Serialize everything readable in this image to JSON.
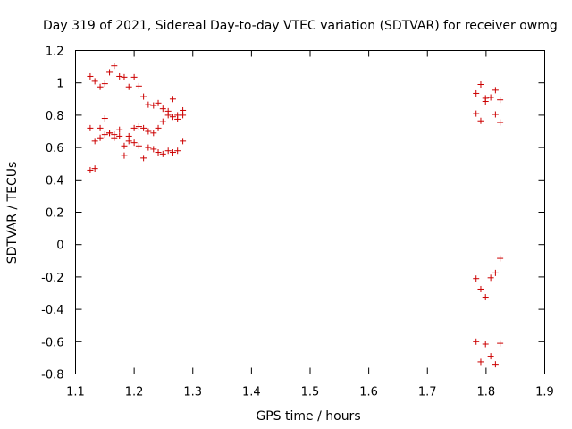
{
  "chart_data": {
    "type": "scatter",
    "title": "Day 319 of 2021, Sidereal Day-to-day VTEC variation (SDTVAR) for receiver owmg",
    "xlabel": "GPS time / hours",
    "ylabel": "SDTVAR / TECUs",
    "xlim": [
      1.1,
      1.9
    ],
    "ylim": [
      -0.8,
      1.2
    ],
    "x_ticks": [
      1.1,
      1.2,
      1.3,
      1.4,
      1.5,
      1.6,
      1.7,
      1.8,
      1.9
    ],
    "x_tick_labels": [
      "1.1",
      "1.2",
      "1.3",
      "1.4",
      "1.5",
      "1.6",
      "1.7",
      "1.8",
      "1.9"
    ],
    "y_ticks": [
      -0.8,
      -0.6,
      -0.4,
      -0.2,
      0,
      0.2,
      0.4,
      0.6,
      0.8,
      1,
      1.2
    ],
    "y_tick_labels": [
      "-0.8",
      "-0.6",
      "-0.4",
      "-0.2",
      "0",
      "0.2",
      "0.4",
      "0.6",
      "0.8",
      "1",
      "1.2"
    ],
    "grid": false,
    "marker": "+",
    "marker_color": "#cc0000",
    "series": [
      {
        "name": "SDTVAR",
        "points": [
          [
            1.125,
            1.04
          ],
          [
            1.133,
            1.01
          ],
          [
            1.142,
            0.975
          ],
          [
            1.15,
            0.995
          ],
          [
            1.158,
            1.065
          ],
          [
            1.166,
            1.105
          ],
          [
            1.175,
            1.04
          ],
          [
            1.183,
            1.035
          ],
          [
            1.191,
            0.975
          ],
          [
            1.2,
            1.035
          ],
          [
            1.208,
            0.98
          ],
          [
            1.216,
            0.915
          ],
          [
            1.224,
            0.865
          ],
          [
            1.233,
            0.86
          ],
          [
            1.241,
            0.875
          ],
          [
            1.249,
            0.84
          ],
          [
            1.258,
            0.825
          ],
          [
            1.266,
            0.9
          ],
          [
            1.274,
            0.775
          ],
          [
            1.283,
            0.83
          ],
          [
            1.125,
            0.72
          ],
          [
            1.133,
            0.64
          ],
          [
            1.142,
            0.72
          ],
          [
            1.15,
            0.78
          ],
          [
            1.158,
            0.69
          ],
          [
            1.166,
            0.68
          ],
          [
            1.175,
            0.71
          ],
          [
            1.183,
            0.55
          ],
          [
            1.191,
            0.64
          ],
          [
            1.2,
            0.72
          ],
          [
            1.208,
            0.73
          ],
          [
            1.216,
            0.72
          ],
          [
            1.224,
            0.7
          ],
          [
            1.233,
            0.69
          ],
          [
            1.241,
            0.72
          ],
          [
            1.249,
            0.76
          ],
          [
            1.258,
            0.8
          ],
          [
            1.266,
            0.79
          ],
          [
            1.274,
            0.8
          ],
          [
            1.283,
            0.8
          ],
          [
            1.125,
            0.46
          ],
          [
            1.133,
            0.47
          ],
          [
            1.142,
            0.66
          ],
          [
            1.15,
            0.68
          ],
          [
            1.158,
            0.69
          ],
          [
            1.166,
            0.66
          ],
          [
            1.175,
            0.67
          ],
          [
            1.183,
            0.61
          ],
          [
            1.191,
            0.67
          ],
          [
            1.2,
            0.63
          ],
          [
            1.208,
            0.61
          ],
          [
            1.216,
            0.535
          ],
          [
            1.224,
            0.6
          ],
          [
            1.233,
            0.59
          ],
          [
            1.241,
            0.57
          ],
          [
            1.249,
            0.56
          ],
          [
            1.258,
            0.58
          ],
          [
            1.266,
            0.57
          ],
          [
            1.274,
            0.58
          ],
          [
            1.283,
            0.64
          ],
          [
            1.783,
            0.935
          ],
          [
            1.791,
            0.99
          ],
          [
            1.799,
            0.905
          ],
          [
            1.808,
            0.91
          ],
          [
            1.816,
            0.955
          ],
          [
            1.824,
            0.895
          ],
          [
            1.783,
            0.81
          ],
          [
            1.791,
            0.765
          ],
          [
            1.799,
            0.885
          ],
          [
            1.816,
            0.805
          ],
          [
            1.824,
            0.755
          ],
          [
            1.783,
            -0.21
          ],
          [
            1.791,
            -0.275
          ],
          [
            1.799,
            -0.325
          ],
          [
            1.808,
            -0.205
          ],
          [
            1.816,
            -0.175
          ],
          [
            1.824,
            -0.085
          ],
          [
            1.783,
            -0.6
          ],
          [
            1.791,
            -0.725
          ],
          [
            1.799,
            -0.615
          ],
          [
            1.808,
            -0.69
          ],
          [
            1.816,
            -0.74
          ],
          [
            1.824,
            -0.61
          ]
        ]
      }
    ]
  }
}
